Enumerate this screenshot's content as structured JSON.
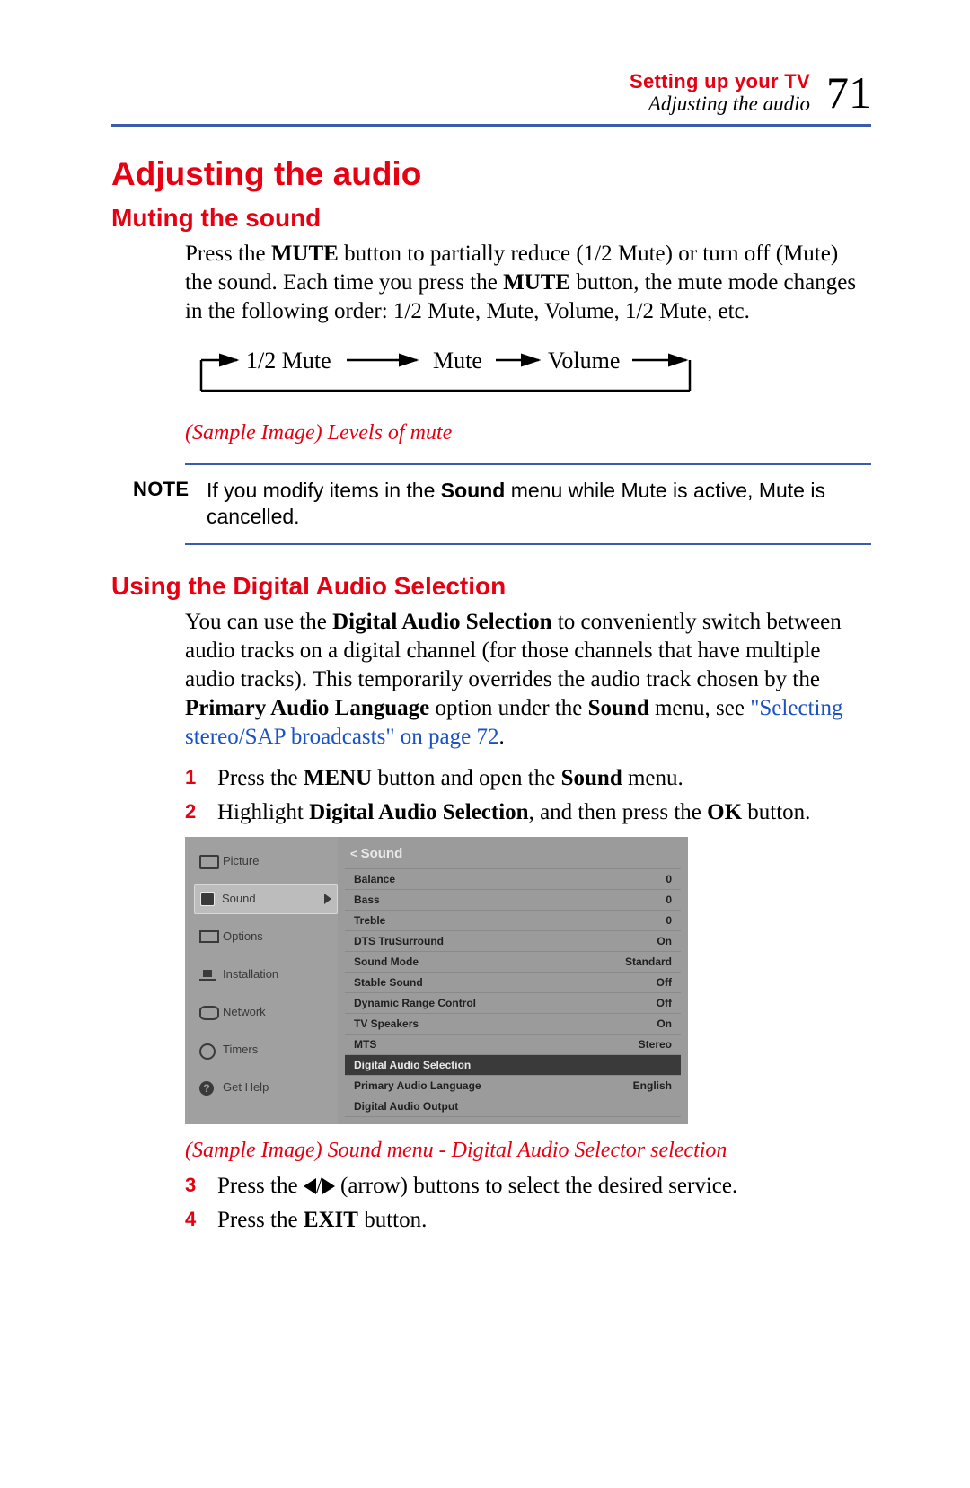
{
  "header": {
    "chapter": "Setting up your TV",
    "section": "Adjusting the audio",
    "page_number": "71"
  },
  "h1": "Adjusting the audio",
  "h2_mute": "Muting the sound",
  "p_mute_a": "Press the ",
  "p_mute_b": "MUTE",
  "p_mute_c": " button to partially reduce (1/2 Mute) or turn off (Mute) the sound. Each time you press the ",
  "p_mute_d": "MUTE",
  "p_mute_e": " button, the mute mode changes in the following order: 1/2 Mute, Mute, Volume, 1/2 Mute, etc.",
  "cycle": {
    "a": "1/2 Mute",
    "b": "Mute",
    "c": "Volume"
  },
  "caption_mute": "(Sample Image) Levels of mute",
  "note_label": "NOTE",
  "note_a": "If you modify items in the ",
  "note_b": "Sound",
  "note_c": " menu while Mute is active, Mute is cancelled.",
  "h2_das": "Using the Digital Audio Selection",
  "das_a": "You can use the ",
  "das_b": "Digital Audio Selection",
  "das_c": " to conveniently switch between audio tracks on a digital channel (for those channels that have multiple audio tracks). This temporarily overrides the audio track chosen by the ",
  "das_d": "Primary Audio Language",
  "das_e": " option under the ",
  "das_f": "Sound",
  "das_g": " menu, see ",
  "das_link": "\"Selecting stereo/SAP broadcasts\" on page 72",
  "das_h": ".",
  "steps": {
    "n1": "1",
    "s1a": "Press the ",
    "s1b": "MENU",
    "s1c": " button and open the ",
    "s1d": "Sound",
    "s1e": " menu.",
    "n2": "2",
    "s2a": "Highlight ",
    "s2b": "Digital Audio Selection",
    "s2c": ", and then press the ",
    "s2d": "OK",
    "s2e": " button.",
    "n3": "3",
    "s3a": "Press the ",
    "s3b": " (arrow) buttons to select the desired service.",
    "n4": "4",
    "s4a": "Press the ",
    "s4b": "EXIT",
    "s4c": " button."
  },
  "osd": {
    "title_lt": "<",
    "title": "Sound",
    "left": [
      "Picture",
      "Sound",
      "Options",
      "Installation",
      "Network",
      "Timers",
      "Get Help"
    ],
    "rows": [
      {
        "l": "Balance",
        "v": "0"
      },
      {
        "l": "Bass",
        "v": "0"
      },
      {
        "l": "Treble",
        "v": "0"
      },
      {
        "l": "DTS TruSurround",
        "v": "On"
      },
      {
        "l": "Sound Mode",
        "v": "Standard"
      },
      {
        "l": "Stable Sound",
        "v": "Off"
      },
      {
        "l": "Dynamic Range Control",
        "v": "Off"
      },
      {
        "l": "TV Speakers",
        "v": "On"
      },
      {
        "l": "MTS",
        "v": "Stereo"
      },
      {
        "l": "Digital Audio Selection",
        "v": ""
      },
      {
        "l": "Primary Audio Language",
        "v": "English"
      },
      {
        "l": "Digital Audio Output",
        "v": ""
      }
    ],
    "selected_row": 9
  },
  "caption_osd": "(Sample Image) Sound menu - Digital Audio Selector selection"
}
